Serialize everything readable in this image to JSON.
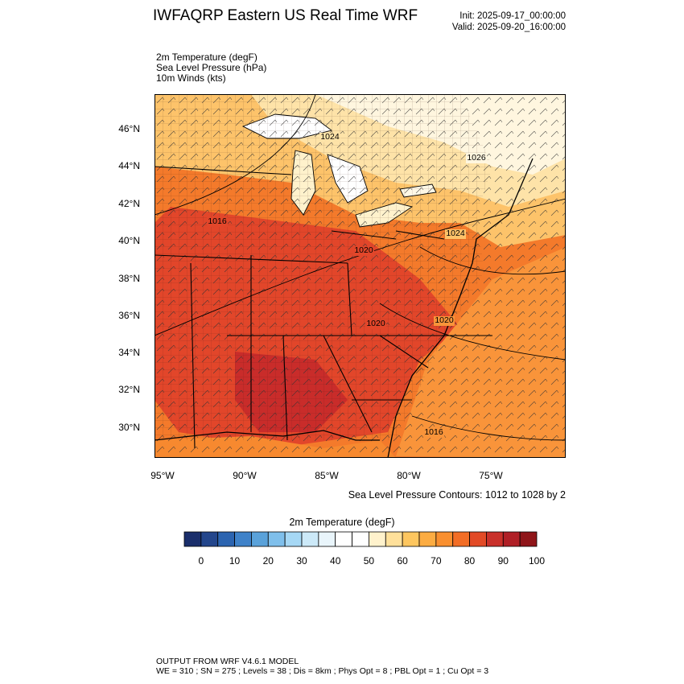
{
  "header": {
    "title": "IWFAQRP Eastern US Real Time WRF",
    "init": "Init: 2025-09-17_00:00:00",
    "valid": "Valid: 2025-09-20_16:00:00"
  },
  "fields": [
    "2m Temperature   (degF)",
    "Sea Level Pressure   (hPa)",
    "10m Winds   (kts)"
  ],
  "map": {
    "lat_labels": [
      "46°N",
      "44°N",
      "42°N",
      "40°N",
      "38°N",
      "36°N",
      "34°N",
      "32°N",
      "30°N"
    ],
    "lon_labels": [
      "95°W",
      "90°W",
      "85°W",
      "80°W",
      "75°W"
    ],
    "contour_labels": [
      "1024",
      "1026",
      "1016",
      "1020",
      "1024",
      "1020",
      "1020",
      "1016"
    ],
    "contour_note": "Sea Level Pressure Contours: 1012 to 1028 by 2"
  },
  "colorbar": {
    "title": "2m Temperature  (degF)",
    "ticks": [
      "0",
      "10",
      "20",
      "30",
      "40",
      "50",
      "60",
      "70",
      "80",
      "90",
      "100"
    ],
    "colors": [
      "#1a2e6b",
      "#23468c",
      "#2c64b0",
      "#3f82c9",
      "#5aa2da",
      "#7fbfeb",
      "#a6d8f5",
      "#cce9f8",
      "#e9f5fb",
      "#ffffff",
      "#ffffff",
      "#fff2cc",
      "#ffe09a",
      "#fdc65f",
      "#fcac42",
      "#f98f2f",
      "#f26d25",
      "#e24a26",
      "#c9302a",
      "#b01f26",
      "#8f1519"
    ]
  },
  "footer": {
    "line1": "OUTPUT FROM WRF V4.6.1 MODEL",
    "line2": "WE = 310 ; SN = 275 ; Levels = 38 ; Dis = 8km ; Phys Opt = 8 ; PBL Opt = 1 ; Cu Opt = 3"
  }
}
